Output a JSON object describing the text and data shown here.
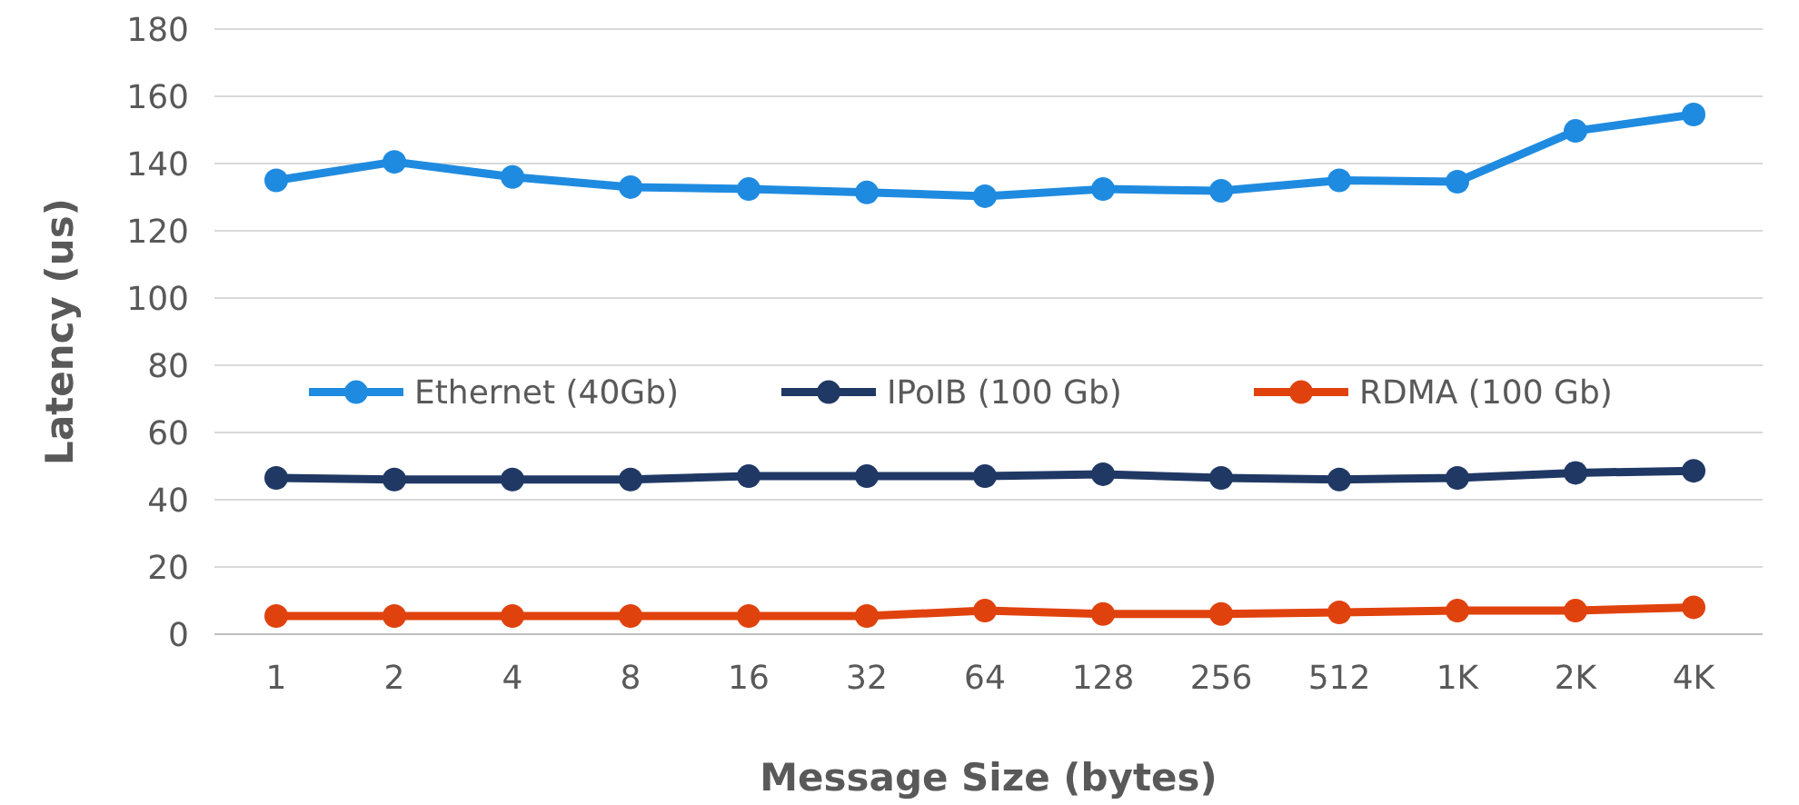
{
  "chart_data": {
    "type": "line",
    "xlabel": "Message Size (bytes)",
    "ylabel": "Latency (us)",
    "categories": [
      "1",
      "2",
      "4",
      "8",
      "16",
      "32",
      "64",
      "128",
      "256",
      "512",
      "1K",
      "2K",
      "4K"
    ],
    "series": [
      {
        "name": "Ethernet (40Gb)",
        "color": "#1f8be0",
        "values": [
          135,
          140.5,
          136,
          133,
          132.4,
          131.4,
          130.3,
          132.4,
          131.9,
          135,
          134.6,
          149.7,
          154.6
        ]
      },
      {
        "name": "IPoIB (100 Gb)",
        "color": "#203864",
        "values": [
          46.5,
          46,
          46,
          46,
          47,
          47,
          47,
          47.6,
          46.5,
          46,
          46.5,
          48,
          48.6
        ]
      },
      {
        "name": "RDMA (100 Gb)",
        "color": "#e0420e",
        "values": [
          5.4,
          5.4,
          5.4,
          5.4,
          5.4,
          5.4,
          7,
          6,
          6,
          6.5,
          7,
          7,
          8
        ]
      }
    ],
    "ylim": [
      0,
      180
    ],
    "yticks": [
      0,
      20,
      40,
      60,
      80,
      100,
      120,
      140,
      160,
      180
    ],
    "grid": "y",
    "legend": "center",
    "marker": "circle",
    "line_style": "solid"
  }
}
